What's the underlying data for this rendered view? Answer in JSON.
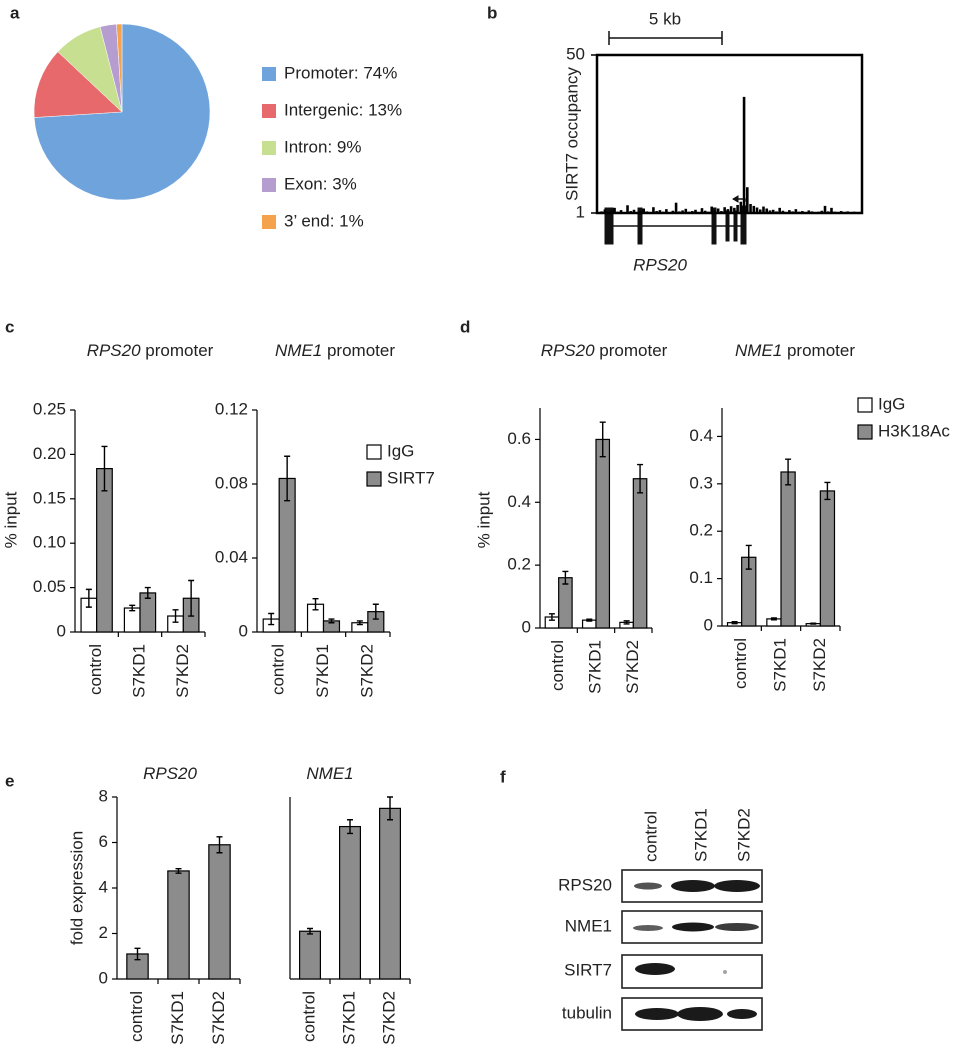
{
  "panel_labels": [
    "a",
    "b",
    "c",
    "d",
    "e",
    "f"
  ],
  "chart_data": [
    {
      "type": "pie",
      "values": [
        74,
        13,
        9,
        3,
        1
      ],
      "value_labels": [
        "Promoter: 74%",
        "Intergenic: 13%",
        "Intron: 9%",
        "Exon: 3%",
        "3’ end: 1%"
      ],
      "colors": [
        "#6fa3dc",
        "#e8696b",
        "#c6df91",
        "#b59dd0",
        "#f4a24c"
      ]
    },
    {
      "type": "track",
      "ylabel": "SIRT7 occupancy",
      "ylim": [
        1,
        50
      ],
      "yticks": [
        1,
        50
      ],
      "scale_bar": "5 kb",
      "gene": "RPS20",
      "color": "#000000",
      "values": [
        1.5,
        2.1,
        1.3,
        1.8,
        2.6,
        1.4,
        1.9,
        1.2,
        3.4,
        1.6,
        2.0,
        1.3,
        1.7,
        2.4,
        1.5,
        1.2,
        2.8,
        1.6,
        1.9,
        1.4,
        2.2,
        1.3,
        1.7,
        4.2,
        1.5,
        1.8,
        2.3,
        1.4,
        1.6,
        2.0,
        1.3,
        2.5,
        1.7,
        1.4,
        3.0,
        1.9,
        2.4,
        1.6,
        2.8,
        2.2,
        3.1,
        2.6,
        3.5,
        4.5,
        37,
        9,
        3.8,
        3.2,
        2.7,
        2.1,
        3.0,
        2.4,
        1.8,
        2.0,
        1.5,
        2.6,
        1.7,
        1.3,
        1.9,
        1.5,
        2.2,
        1.4,
        1.6,
        1.3,
        1.8,
        1.5,
        1.2,
        1.4,
        1.7,
        3.2,
        1.5,
        2.6,
        1.4,
        1.3,
        1.6,
        1.2,
        1.5,
        1.3,
        1.4,
        1.2
      ]
    },
    {
      "type": "bar",
      "title": "RPS20 promoter",
      "ylabel": "% input",
      "categories": [
        "control",
        "S7KD1",
        "S7KD2"
      ],
      "ylim": [
        0,
        0.25
      ],
      "yticks": [
        0,
        0.05,
        {
          "value": 0.1,
          "label": "0.10"
        },
        0.15,
        {
          "value": 0.2,
          "label": "0.20"
        },
        0.25
      ],
      "series": [
        {
          "color": "#ffffff",
          "values": [
            0.038,
            0.027,
            0.018
          ],
          "errors": [
            0.01,
            0.003,
            0.007
          ]
        },
        {
          "color": "#8c8c8c",
          "values": [
            0.184,
            0.044,
            0.038
          ],
          "errors": [
            0.025,
            0.006,
            0.02
          ]
        }
      ]
    },
    {
      "type": "bar",
      "title": "NME1 promoter",
      "categories": [
        "control",
        "S7KD1",
        "S7KD2"
      ],
      "ylim": [
        0,
        0.12
      ],
      "yticks": [
        0,
        0.04,
        0.08,
        0.12
      ],
      "series": [
        {
          "name": "IgG",
          "color": "#ffffff",
          "values": [
            0.007,
            0.015,
            0.005
          ],
          "errors": [
            0.003,
            0.003,
            0.001
          ]
        },
        {
          "name": "SIRT7",
          "color": "#8c8c8c",
          "values": [
            0.083,
            0.006,
            0.011
          ],
          "errors": [
            0.012,
            0.001,
            0.004
          ]
        }
      ]
    },
    {
      "type": "bar",
      "title": "RPS20 promoter",
      "ylabel": "% input",
      "categories": [
        "control",
        "S7KD1",
        "S7KD2"
      ],
      "ylim": [
        0,
        0.7
      ],
      "yticks": [
        0,
        0.2,
        0.4,
        0.6
      ],
      "series": [
        {
          "color": "#ffffff",
          "values": [
            0.035,
            0.025,
            0.018
          ],
          "errors": [
            0.01,
            0.003,
            0.005
          ]
        },
        {
          "color": "#8c8c8c",
          "values": [
            0.16,
            0.6,
            0.475
          ],
          "errors": [
            0.02,
            0.055,
            0.045
          ]
        }
      ]
    },
    {
      "type": "bar",
      "title": "NME1 promoter",
      "categories": [
        "control",
        "S7KD1",
        "S7KD2"
      ],
      "ylim": [
        0,
        0.46
      ],
      "yticks": [
        0,
        0.1,
        0.2,
        0.3,
        0.4
      ],
      "series": [
        {
          "name": "IgG",
          "color": "#ffffff",
          "values": [
            0.007,
            0.015,
            0.005
          ],
          "errors": [
            0.002,
            0.002,
            0.001
          ]
        },
        {
          "name": "H3K18Ac",
          "color": "#8c8c8c",
          "values": [
            0.145,
            0.325,
            0.285
          ],
          "errors": [
            0.025,
            0.027,
            0.018
          ]
        }
      ]
    },
    {
      "type": "bar",
      "title": "RPS20",
      "ylabel": "fold expression",
      "categories": [
        "control",
        "S7KD1",
        "S7KD2"
      ],
      "ylim": [
        0,
        8
      ],
      "yticks": [
        0,
        2,
        4,
        6,
        8
      ],
      "series": [
        {
          "color": "#8c8c8c",
          "values": [
            1.1,
            4.75,
            5.9
          ],
          "errors": [
            0.25,
            0.1,
            0.35
          ]
        }
      ]
    },
    {
      "type": "bar",
      "title": "NME1",
      "categories": [
        "control",
        "S7KD1",
        "S7KD2"
      ],
      "ylim": [
        0,
        8
      ],
      "series": [
        {
          "color": "#8c8c8c",
          "values": [
            2.1,
            6.7,
            7.5
          ],
          "errors": [
            0.12,
            0.3,
            0.5
          ]
        }
      ]
    },
    {
      "type": "blot",
      "lanes": [
        "control",
        "S7KD1",
        "S7KD2"
      ],
      "rows": [
        "RPS20",
        "NME1",
        "SIRT7",
        "tubulin"
      ]
    }
  ]
}
